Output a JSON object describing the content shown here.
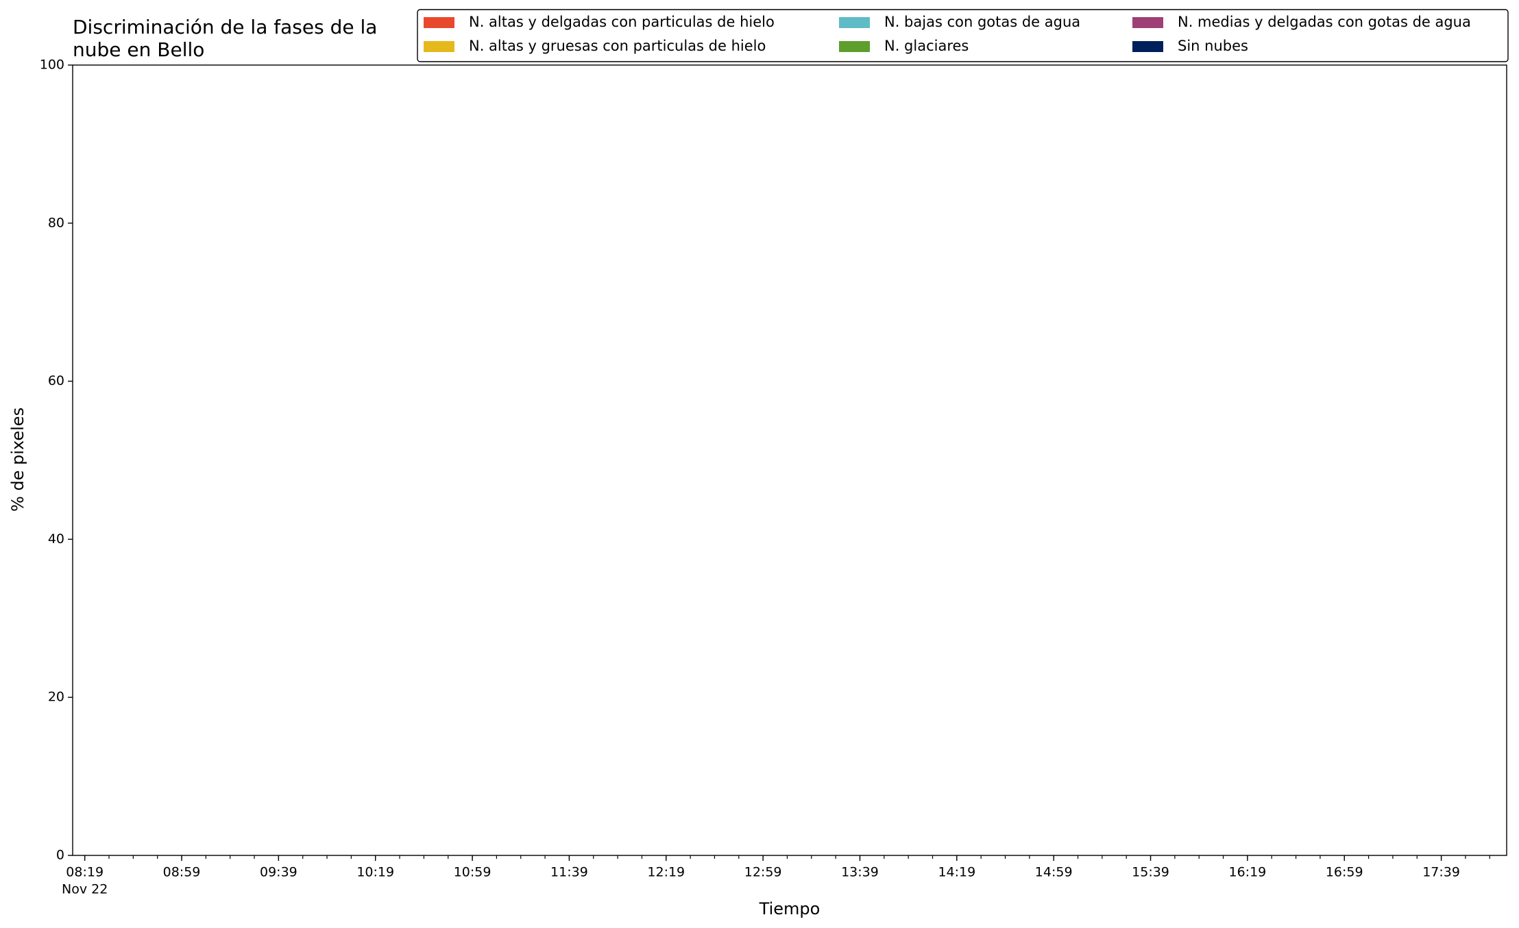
{
  "chart_data": {
    "type": "area",
    "stacked": true,
    "title": "Discriminación de la fases de la\nnube en Bello",
    "xlabel": "Tiempo",
    "ylabel": "% de pixeles",
    "x": [],
    "series": [
      {
        "name": "N. altas y delgadas con particulas de hielo",
        "color": "#e8492d",
        "values": []
      },
      {
        "name": "N. altas y gruesas con particulas de hielo",
        "color": "#e5b81b",
        "values": []
      },
      {
        "name": "N. bajas con gotas de agua",
        "color": "#5fbcc6",
        "values": []
      },
      {
        "name": "N. glaciares",
        "color": "#5e9e2d",
        "values": []
      },
      {
        "name": "N. medias y delgadas con gotas de agua",
        "color": "#9e4075",
        "values": []
      },
      {
        "name": "Sin nubes",
        "color": "#00205b",
        "values": []
      }
    ],
    "xlim": [
      "08:14",
      "18:06"
    ],
    "xticks": [
      "08:19",
      "08:59",
      "09:39",
      "10:19",
      "10:59",
      "11:39",
      "12:19",
      "12:59",
      "13:39",
      "14:19",
      "14:59",
      "15:39",
      "16:19",
      "16:59",
      "17:39"
    ],
    "x_date_label": "Nov 22",
    "xminor_interval_minutes": 10,
    "ylim": [
      0,
      100
    ],
    "yticks": [
      0,
      20,
      40,
      60,
      80,
      100
    ],
    "grid": false,
    "legend": "upper right",
    "legend_columns": 3
  }
}
